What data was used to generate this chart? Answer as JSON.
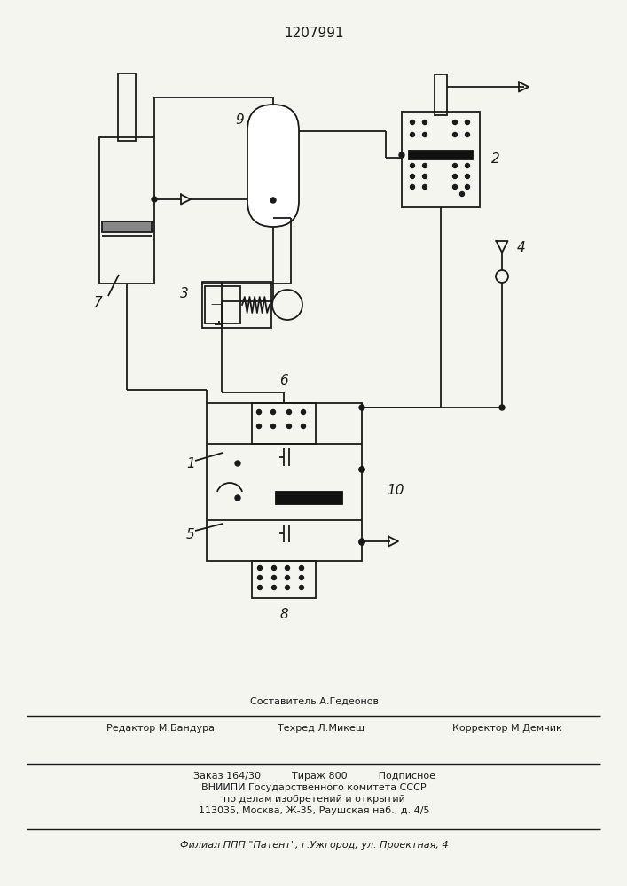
{
  "title": "1207991",
  "bg_color": "#f5f5f0",
  "line_color": "#1a1a1a",
  "footer_col2a": "Составитель А.Гедеонов",
  "footer_col1": "Редактор М.Бандура",
  "footer_col2b": "Техред Л.Микеш",
  "footer_col3": "Корректор М.Демчик",
  "footer_b1": "Заказ 164/30          Тираж 800          Подписное",
  "footer_b2": "ВНИИПИ Государственного комитета СССР",
  "footer_b3": "по делам изобретений и открытий",
  "footer_b4": "113035, Москва, Ж-35, Раушская наб., д. 4/5",
  "footer_bottom": "Филиал ППП \"Патент\", г.Ужгород, ул. Проектная, 4"
}
